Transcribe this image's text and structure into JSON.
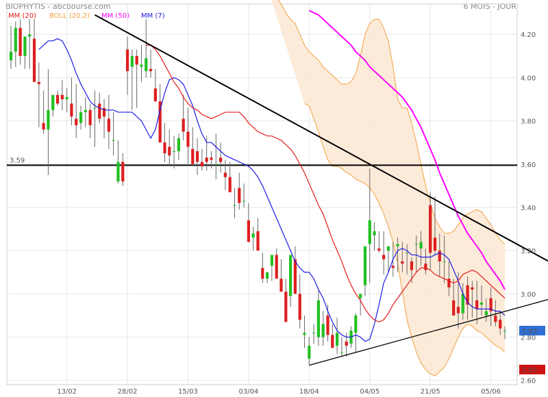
{
  "header": {
    "title": "BIOPHYTIS",
    "source": "- abcbourse.com",
    "period": "6 MOIS - JOUR"
  },
  "legend": [
    {
      "label": "MM (20)",
      "color": "#e41a1a"
    },
    {
      "label": "BOLL (20,2)",
      "color": "#f0a040"
    },
    {
      "label": "MM (50)",
      "color": "#ff00ff"
    },
    {
      "label": "MM (7)",
      "color": "#1a1ae6"
    }
  ],
  "chart_data": {
    "type": "candlestick",
    "y_ticks": [
      "4.20",
      "4.00",
      "3.80",
      "3.60",
      "3.40",
      "3.20",
      "3.00",
      "2.80",
      "2.60"
    ],
    "ylim": [
      2.58,
      4.34
    ],
    "x_ticks": [
      "13/02",
      "28/02",
      "15/03",
      "03/04",
      "18/04",
      "04/05",
      "21/05",
      "05/06"
    ],
    "x_tick_index": [
      12,
      25,
      38,
      51,
      64,
      77,
      90,
      103
    ],
    "grid": true,
    "support_level": {
      "label": "3.59",
      "value": 3.595
    },
    "price_badges": [
      {
        "label": "2.83",
        "value": 2.83,
        "color": "#2f6fd6"
      },
      {
        "label": "2.65",
        "value": 2.65,
        "color": "#cc1111"
      }
    ],
    "trendlines": [
      {
        "name": "resistance",
        "from": [
          18,
          4.29
        ],
        "to": [
          118,
          3.12
        ],
        "color": "#000000"
      },
      {
        "name": "support",
        "from": [
          64,
          2.67
        ],
        "to": [
          118,
          2.99
        ],
        "color": "#000000"
      }
    ],
    "candles": {
      "open": [
        4.08,
        4.12,
        4.23,
        4.1,
        4.19,
        4.18,
        3.98,
        3.79,
        3.76,
        3.85,
        3.92,
        3.92,
        3.9,
        3.88,
        3.81,
        3.79,
        3.84,
        3.85,
        3.86,
        3.88,
        3.86,
        3.81,
        3.71,
        3.52,
        3.61,
        4.13,
        4.05,
        4.1,
        4.05,
        4.03,
        4.04,
        3.95,
        3.89,
        3.7,
        3.68,
        3.66,
        3.66,
        3.81,
        3.75,
        3.67,
        3.66,
        3.61,
        3.63,
        3.63,
        3.6,
        3.63,
        3.56,
        3.54,
        3.41,
        3.49,
        3.43,
        3.34,
        3.26,
        3.29,
        3.12,
        3.07,
        3.13,
        3.18,
        3.07,
        3.01,
        2.99,
        3.16,
        3.0,
        2.81,
        2.7,
        2.82,
        2.8,
        2.8,
        2.9,
        2.81,
        2.76,
        2.73,
        2.78,
        2.77,
        2.82,
        2.98,
        3.04,
        3.23,
        3.27,
        3.21,
        3.18,
        3.2,
        3.13,
        3.22,
        3.15,
        3.19,
        3.15,
        3.23,
        3.21,
        3.14,
        3.41,
        3.26,
        3.2,
        3.15,
        3.07,
        2.97,
        2.94,
        2.91,
        3.04,
        3.03,
        2.97,
        2.95,
        2.9,
        2.98,
        2.9,
        2.88,
        2.83
      ],
      "high": [
        4.24,
        4.26,
        4.27,
        4.19,
        4.27,
        4.27,
        4.07,
        3.94,
        4.04,
        3.91,
        3.94,
        3.99,
        3.95,
        4.0,
        3.97,
        3.87,
        3.91,
        3.88,
        3.94,
        3.93,
        3.9,
        3.92,
        3.84,
        3.71,
        3.65,
        4.19,
        4.13,
        4.13,
        4.15,
        4.27,
        4.13,
        4.04,
        3.97,
        3.79,
        3.76,
        3.73,
        3.74,
        3.92,
        3.86,
        3.77,
        3.72,
        3.67,
        3.73,
        3.66,
        3.74,
        3.7,
        3.62,
        3.61,
        3.49,
        3.56,
        3.51,
        3.42,
        3.31,
        3.35,
        3.19,
        3.1,
        3.13,
        3.21,
        3.16,
        3.07,
        3.07,
        3.22,
        3.09,
        2.9,
        2.8,
        2.86,
        3.02,
        2.92,
        2.95,
        2.86,
        2.89,
        2.8,
        2.82,
        2.85,
        2.91,
        3.0,
        3.09,
        3.58,
        3.33,
        3.29,
        3.29,
        3.22,
        3.24,
        3.26,
        3.24,
        3.23,
        3.17,
        3.27,
        3.29,
        3.21,
        3.47,
        3.45,
        3.28,
        3.27,
        3.15,
        3.07,
        3.1,
        3.05,
        3.08,
        3.06,
        3.06,
        3.04,
        2.98,
        3.03,
        2.97,
        2.92,
        2.85
      ],
      "low": [
        4.04,
        4.05,
        4.06,
        4.04,
        4.04,
        3.99,
        3.77,
        3.74,
        3.55,
        3.82,
        3.87,
        3.85,
        3.84,
        3.78,
        3.72,
        3.76,
        3.77,
        3.72,
        3.68,
        3.79,
        3.72,
        3.67,
        3.64,
        3.51,
        3.5,
        3.92,
        3.85,
        3.86,
        3.98,
        4.0,
        4.0,
        3.93,
        3.76,
        3.61,
        3.59,
        3.58,
        3.62,
        3.71,
        3.59,
        3.59,
        3.55,
        3.57,
        3.57,
        3.58,
        3.53,
        3.56,
        3.48,
        3.5,
        3.35,
        3.39,
        3.4,
        3.25,
        3.2,
        3.2,
        3.05,
        3.05,
        3.06,
        3.13,
        3.01,
        2.89,
        2.94,
        3.05,
        2.84,
        2.75,
        2.67,
        2.77,
        2.76,
        2.76,
        2.78,
        2.75,
        2.72,
        2.71,
        2.71,
        2.75,
        2.73,
        2.9,
        2.99,
        3.05,
        3.2,
        3.19,
        3.09,
        3.1,
        3.08,
        3.1,
        3.1,
        3.09,
        3.05,
        3.1,
        3.13,
        3.09,
        3.11,
        3.18,
        3.08,
        3.05,
        2.99,
        2.9,
        2.84,
        2.88,
        2.88,
        2.89,
        2.86,
        2.9,
        2.87,
        2.85,
        2.85,
        2.81,
        2.79
      ],
      "close": [
        4.12,
        4.23,
        4.1,
        4.19,
        4.2,
        3.98,
        3.97,
        3.76,
        3.85,
        3.92,
        3.88,
        3.9,
        3.91,
        3.82,
        3.78,
        3.84,
        3.85,
        3.78,
        3.86,
        3.81,
        3.82,
        3.75,
        3.71,
        3.61,
        3.52,
        4.03,
        4.1,
        4.06,
        4.06,
        4.09,
        4.03,
        3.89,
        3.7,
        3.65,
        3.64,
        3.66,
        3.72,
        3.75,
        3.68,
        3.6,
        3.61,
        3.59,
        3.61,
        3.62,
        3.6,
        3.61,
        3.54,
        3.47,
        3.41,
        3.42,
        3.43,
        3.24,
        3.28,
        3.2,
        3.07,
        3.1,
        3.18,
        3.07,
        3.01,
        2.87,
        3.18,
        3.0,
        2.88,
        2.82,
        2.76,
        2.82,
        2.97,
        2.86,
        2.81,
        2.75,
        2.82,
        2.73,
        2.76,
        2.83,
        2.9,
        3.0,
        3.22,
        3.34,
        3.29,
        3.2,
        3.16,
        3.22,
        3.12,
        3.23,
        3.14,
        3.19,
        3.11,
        3.23,
        3.24,
        3.11,
        3.19,
        3.2,
        3.15,
        3.15,
        3.03,
        2.9,
        2.91,
        3.0,
        2.95,
        3.02,
        2.93,
        2.96,
        2.92,
        2.92,
        2.87,
        2.84,
        2.83
      ]
    },
    "series": [
      {
        "name": "MM (7)",
        "color": "#1a1ae6",
        "values": [
          4.13,
          4.15,
          4.17,
          4.17,
          4.18,
          4.17,
          4.13,
          4.08,
          4.02,
          3.97,
          3.93,
          3.89,
          3.87,
          3.86,
          3.85,
          3.85,
          3.85,
          3.84,
          3.84,
          3.84,
          3.84,
          3.82,
          3.8,
          3.76,
          3.72,
          3.76,
          3.85,
          3.93,
          3.99,
          4.0,
          3.99,
          3.97,
          3.92,
          3.87,
          3.8,
          3.74,
          3.7,
          3.7,
          3.68,
          3.66,
          3.64,
          3.63,
          3.62,
          3.61,
          3.6,
          3.59,
          3.57,
          3.54,
          3.5,
          3.45,
          3.4,
          3.35,
          3.3,
          3.25,
          3.2,
          3.15,
          3.12,
          3.1,
          3.1,
          3.07,
          3.02,
          2.98,
          2.92,
          2.87,
          2.83,
          2.81,
          2.8,
          2.8,
          2.81,
          2.8,
          2.78,
          2.79,
          2.86,
          2.95,
          3.05,
          3.1,
          3.16,
          3.2,
          3.21,
          3.2,
          3.18,
          3.18,
          3.17,
          3.17,
          3.17,
          3.18,
          3.19,
          3.18,
          3.16,
          3.11,
          3.06,
          3.0,
          2.96,
          2.94,
          2.93,
          2.93,
          2.93,
          2.93,
          2.92,
          2.92,
          2.9
        ]
      },
      {
        "name": "MM (20)",
        "color": "#e41a1a",
        "values": [
          4.15,
          4.15,
          4.13,
          4.1,
          4.06,
          4.02,
          3.98,
          3.95,
          3.91,
          3.88,
          3.86,
          3.85,
          3.83,
          3.82,
          3.81,
          3.82,
          3.83,
          3.84,
          3.84,
          3.84,
          3.84,
          3.82,
          3.79,
          3.77,
          3.75,
          3.74,
          3.73,
          3.73,
          3.72,
          3.71,
          3.69,
          3.67,
          3.64,
          3.6,
          3.56,
          3.51,
          3.46,
          3.41,
          3.37,
          3.31,
          3.25,
          3.2,
          3.15,
          3.09,
          3.04,
          3.0,
          2.97,
          2.93,
          2.9,
          2.88,
          2.87,
          2.88,
          2.91,
          2.95,
          2.98,
          3.01,
          3.04,
          3.07,
          3.1,
          3.12,
          3.12,
          3.11,
          3.09,
          3.08,
          3.07,
          3.06,
          3.05,
          3.06,
          3.09,
          3.1,
          3.11,
          3.1,
          3.08,
          3.06,
          3.04,
          3.02,
          3.0,
          2.98
        ]
      },
      {
        "name": "MM (50)",
        "color": "#ff00ff",
        "values": [
          4.31,
          4.3,
          4.29,
          4.27,
          4.25,
          4.23,
          4.21,
          4.19,
          4.17,
          4.15,
          4.12,
          4.1,
          4.08,
          4.05,
          4.03,
          4.01,
          3.99,
          3.97,
          3.95,
          3.93,
          3.91,
          3.88,
          3.85,
          3.81,
          3.77,
          3.72,
          3.67,
          3.62,
          3.56,
          3.51,
          3.46,
          3.41,
          3.36,
          3.32,
          3.28,
          3.25,
          3.22,
          3.19,
          3.15,
          3.12,
          3.09,
          3.06,
          3.02
        ]
      },
      {
        "name": "BOLL (20,2) upper",
        "color": "#f0a040",
        "values": [
          4.42,
          4.4,
          4.37,
          4.34,
          4.3,
          4.27,
          4.25,
          4.2,
          4.15,
          4.12,
          4.1,
          4.08,
          4.05,
          4.03,
          4.01,
          3.99,
          3.97,
          3.97,
          3.98,
          4.02,
          4.1,
          4.2,
          4.25,
          4.27,
          4.27,
          4.23,
          4.17,
          4.05,
          3.9,
          3.86,
          3.86,
          3.79,
          3.7,
          3.6,
          3.5,
          3.42,
          3.35,
          3.31,
          3.28,
          3.28,
          3.29,
          3.32,
          3.35,
          3.37,
          3.38,
          3.39,
          3.38,
          3.35,
          3.32,
          3.28,
          3.25,
          3.23
        ]
      },
      {
        "name": "BOLL (20,2) lower",
        "color": "#f0a040",
        "values": [
          3.88,
          3.87,
          3.81,
          3.75,
          3.68,
          3.62,
          3.59,
          3.59,
          3.58,
          3.56,
          3.55,
          3.53,
          3.52,
          3.51,
          3.49,
          3.46,
          3.42,
          3.37,
          3.31,
          3.24,
          3.14,
          3.01,
          2.88,
          2.8,
          2.73,
          2.68,
          2.65,
          2.63,
          2.62,
          2.64,
          2.66,
          2.7,
          2.75,
          2.8,
          2.84,
          2.86,
          2.85,
          2.83,
          2.82,
          2.8,
          2.78,
          2.76,
          2.75,
          2.73
        ]
      }
    ]
  }
}
